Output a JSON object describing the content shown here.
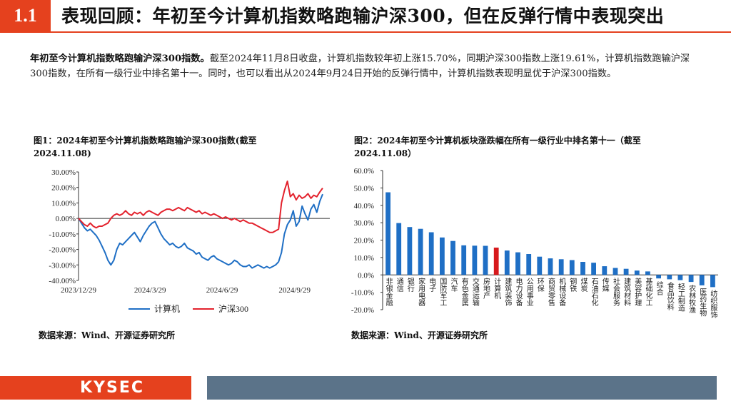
{
  "header": {
    "section_number": "1.1",
    "title": "表现回顾：年初至今计算机指数略跑输沪深300，但在反弹行情中表现突出",
    "accent_color": "#e5411e"
  },
  "summary": {
    "bold_lead": "年初至今计算机指数略跑输沪深300指数。",
    "body": "截至2024年11月8日收盘，计算机指数较年初上涨15.70%，同期沪深300指数上涨19.61%，计算机指数跑输沪深300指数，在所有一级行业中排名第十一。同时，也可以看出从2024年9月24日开始的反弹行情中，计算机指数表现明显优于沪深300指数。"
  },
  "figure1": {
    "caption": "图1：2024年初至今计算机指数略跑输沪深300指数(截至2024.11.08)",
    "source": "数据来源：Wind、开源证券研究所"
  },
  "figure2": {
    "caption": "图2：2024年初至今计算机板块涨跌幅在所有一级行业中排名第十一（截至2024.11.08）",
    "source": "数据来源：Wind、开源证券研究所"
  },
  "footer": {
    "logo_text": "KYSEC",
    "logo_color": "#e5411e",
    "bar_color": "#5b7389"
  },
  "chart_data": [
    {
      "type": "line",
      "x_tick_labels": [
        "2023/12/29",
        "2024/3/29",
        "2024/6/29",
        "2024/9/29"
      ],
      "y_tick_labels": [
        "30.00%",
        "20.00%",
        "10.00%",
        "0.00%",
        "-10.00%",
        "-20.00%",
        "-30.00%",
        "-40.00%"
      ],
      "ylim": [
        -40,
        30
      ],
      "series": [
        {
          "name": "计算机",
          "color": "#1f6fc5",
          "values": [
            0,
            -3,
            -6,
            -8,
            -7,
            -9,
            -11,
            -14,
            -18,
            -22,
            -27,
            -30,
            -27,
            -20,
            -16,
            -17,
            -15,
            -13,
            -11,
            -9,
            -12,
            -15,
            -11,
            -8,
            -5,
            -3,
            -2,
            -6,
            -10,
            -13,
            -15,
            -17,
            -16,
            -18,
            -19,
            -18,
            -16,
            -19,
            -20,
            -21,
            -23,
            -22,
            -25,
            -26,
            -27,
            -25,
            -24,
            -26,
            -27,
            -28,
            -29,
            -30,
            -29,
            -27,
            -28,
            -30,
            -31,
            -31,
            -30,
            -32,
            -31,
            -30,
            -31,
            -32,
            -31,
            -32,
            -31,
            -30,
            -28,
            -22,
            -10,
            -4,
            -1,
            5,
            -5,
            -2,
            8,
            3,
            -1,
            6,
            9,
            4,
            11,
            15.7
          ]
        },
        {
          "name": "沪深300",
          "color": "#e3222d",
          "values": [
            0,
            -2,
            -4,
            -5,
            -3,
            -5,
            -6,
            -5,
            -5,
            -4,
            -3,
            0,
            2,
            3,
            2,
            3,
            5,
            3,
            2,
            4,
            3,
            4,
            2,
            4,
            5,
            4,
            3,
            2,
            4,
            5,
            6,
            6,
            5,
            6,
            7,
            6,
            5,
            7,
            6,
            5,
            4,
            5,
            3,
            4,
            3,
            2,
            3,
            2,
            1,
            0,
            1,
            0,
            -1,
            0,
            -1,
            -2,
            -1,
            -2,
            -3,
            -3,
            -4,
            -5,
            -6,
            -7,
            -8,
            -9,
            -9,
            -8,
            -7,
            10,
            18,
            24,
            14,
            16,
            12,
            15,
            13,
            14,
            16,
            13,
            15,
            14,
            17,
            19.61
          ]
        }
      ]
    },
    {
      "type": "bar",
      "y_tick_labels": [
        "60.0%",
        "50.0%",
        "40.0%",
        "30.0%",
        "20.0%",
        "10.0%",
        "0.0%",
        "-10.0%",
        "-20.0%"
      ],
      "ylim": [
        -20,
        60
      ],
      "highlight_category": "计算机",
      "bar_color": "#1f6fc5",
      "highlight_color": "#d7191c",
      "categories": [
        "非银金融",
        "通信",
        "银行",
        "家用电器",
        "电子",
        "国防军工",
        "汽车",
        "有色金属",
        "交通运输",
        "房地产",
        "计算机",
        "建筑装饰",
        "电力设备",
        "公用事业",
        "环保",
        "商贸零售",
        "机械设备",
        "钢铁",
        "煤炭",
        "石油石化",
        "传媒",
        "社会服务",
        "建筑材料",
        "美容护理",
        "基础化工",
        "综合",
        "食品饮料",
        "轻工制造",
        "农林牧渔",
        "医药生物",
        "纺织服饰"
      ],
      "values": [
        47.5,
        29.8,
        27.5,
        26.5,
        24.5,
        21.5,
        19.5,
        17.0,
        16.8,
        16.7,
        15.7,
        14.0,
        13.0,
        12.0,
        10.5,
        9.5,
        9.0,
        8.5,
        7.5,
        7.0,
        5.0,
        4.0,
        3.5,
        2.5,
        2.0,
        -2.0,
        -2.5,
        -3.0,
        -4.0,
        -6.0,
        -7.0
      ]
    }
  ]
}
